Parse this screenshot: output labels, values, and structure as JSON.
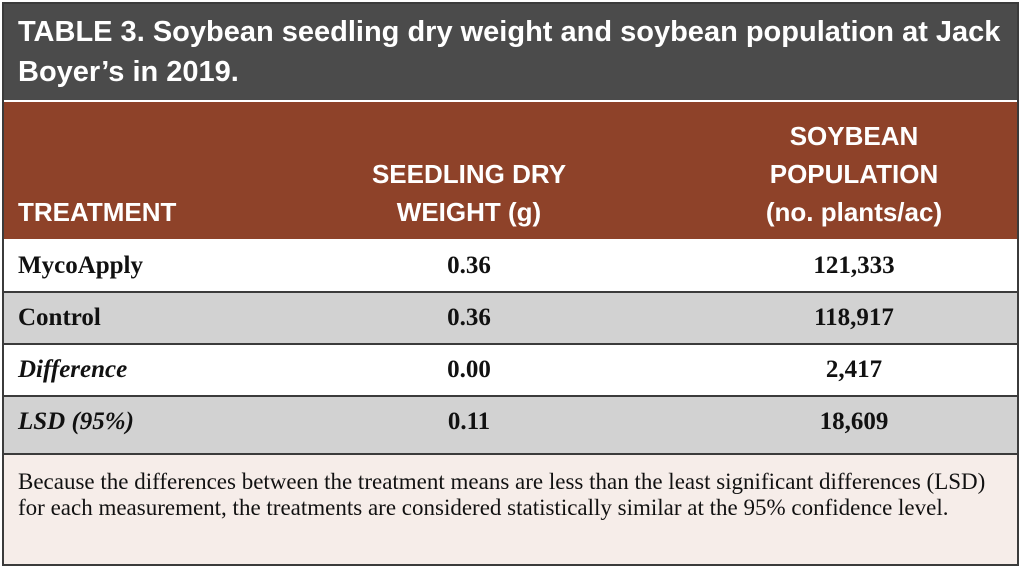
{
  "title": {
    "label": "TABLE 3.",
    "text": "Soybean seedling dry weight and soybean population at Jack Boyer’s in 2019."
  },
  "headers": {
    "treatment": [
      "TREATMENT"
    ],
    "weight": [
      "SEEDLING DRY",
      "WEIGHT (g)"
    ],
    "population": [
      "SOYBEAN",
      "POPULATION",
      "(no. plants/ac)"
    ]
  },
  "rows": [
    {
      "treatment": "MycoApply",
      "weight": "0.36",
      "population": "121,333"
    },
    {
      "treatment": "Control",
      "weight": "0.36",
      "population": "118,917"
    },
    {
      "treatment": "Difference",
      "weight": "0.00",
      "population": "2,417"
    },
    {
      "treatment": "LSD (95%)",
      "weight": "0.11",
      "population": "18,609"
    }
  ],
  "footnote": "Because the differences between the treatment means are less than the least significant differences (LSD) for each measurement, the treatments are considered statistically similar at the 95% confidence level.",
  "colors": {
    "title_background": "#4b4b4b",
    "header_background": "#8e4229",
    "shaded_row": "#d2d2d2",
    "footnote_background": "#f6ede9"
  }
}
